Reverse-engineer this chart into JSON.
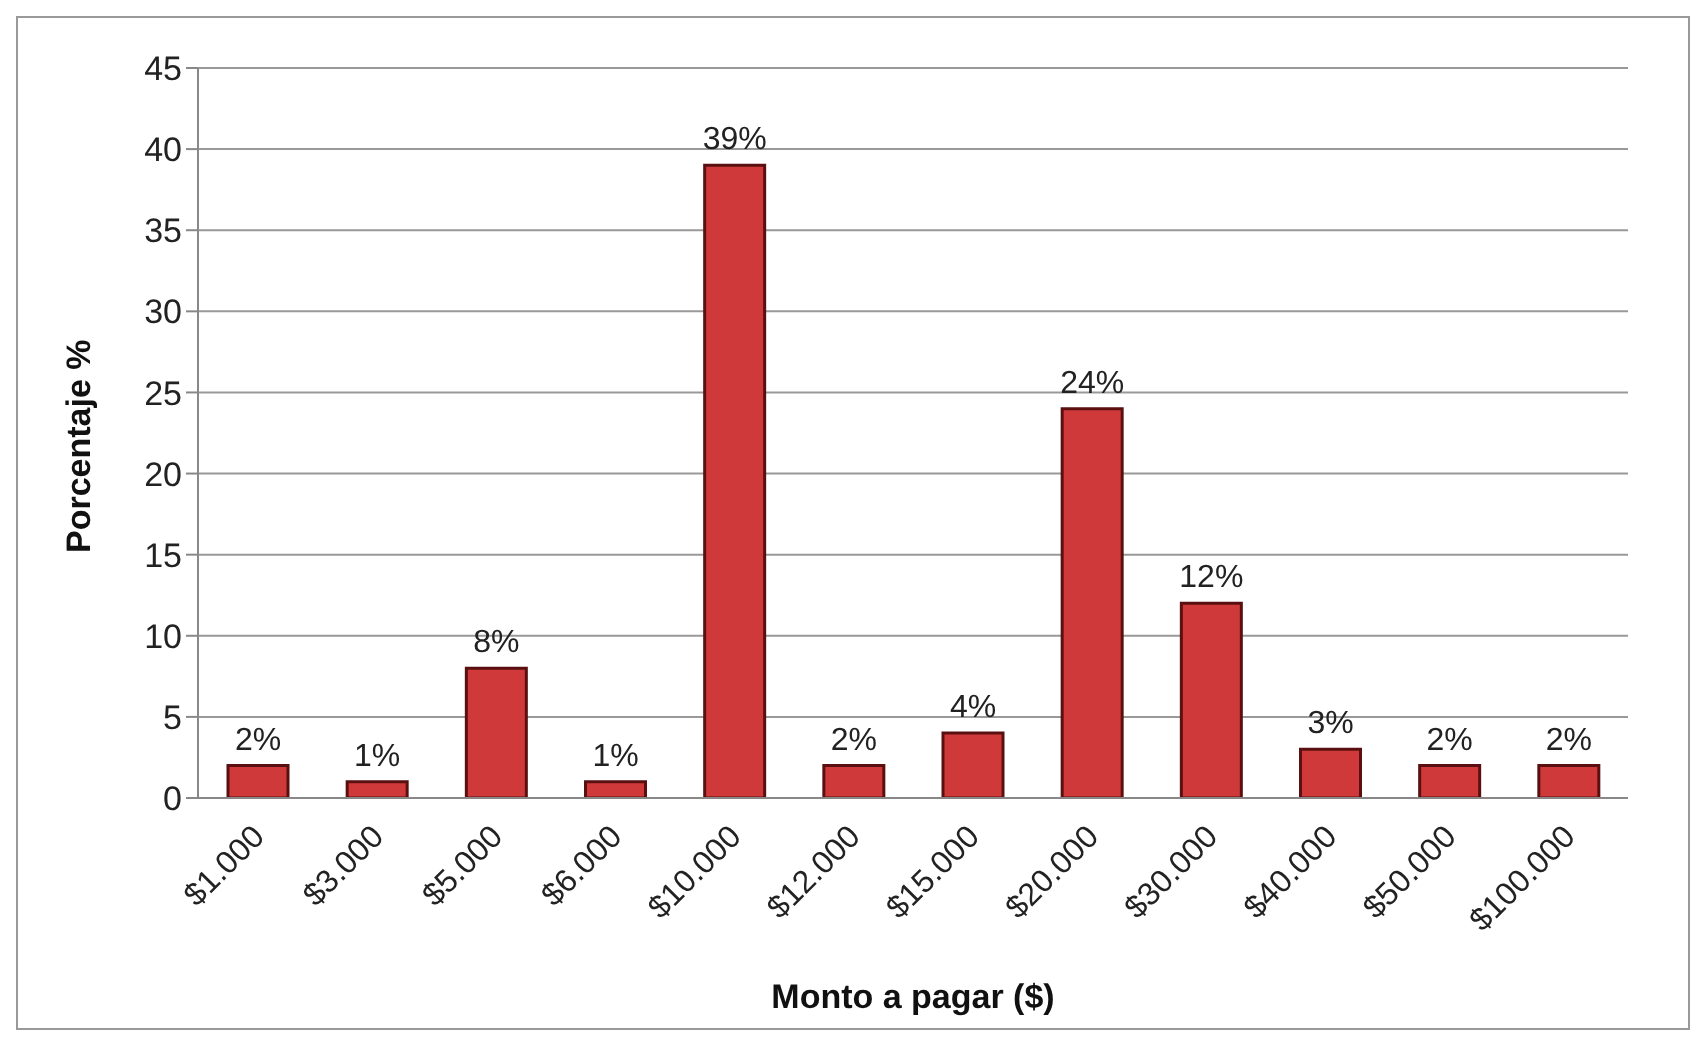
{
  "chart_data": {
    "type": "bar",
    "xlabel": "Monto a pagar ($)",
    "ylabel": "Porcentaje %",
    "categories": [
      "$1.000",
      "$3.000",
      "$5.000",
      "$6.000",
      "$10.000",
      "$12.000",
      "$15.000",
      "$20.000",
      "$30.000",
      "$40.000",
      "$50.000",
      "$100.000"
    ],
    "values": [
      2,
      1,
      8,
      1,
      39,
      2,
      4,
      24,
      12,
      3,
      2,
      2
    ],
    "value_labels": [
      "2%",
      "1%",
      "8%",
      "1%",
      "39%",
      "2%",
      "4%",
      "24%",
      "12%",
      "3%",
      "2%",
      "2%"
    ],
    "color": "#d0393a",
    "ylim": [
      0,
      45
    ],
    "yticks": [
      0,
      5,
      10,
      15,
      20,
      25,
      30,
      35,
      40,
      45
    ],
    "grid": "y"
  }
}
